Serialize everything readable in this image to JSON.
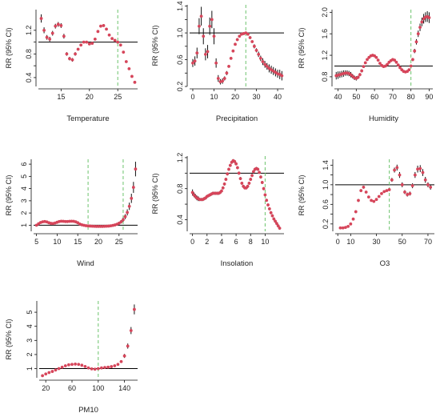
{
  "figure": {
    "ylabel": "RR (95% CI)"
  },
  "colors": {
    "point": "#d6455a",
    "ci": "#111111",
    "refline": "#000000",
    "threshold": "#6cc36c",
    "axis": "#111111"
  },
  "chart_data": [
    {
      "type": "scatter",
      "xlabel": "Temperature",
      "ylabel": "RR (95% CI)",
      "xlim": [
        11,
        28.5
      ],
      "ylim": [
        0.25,
        1.55
      ],
      "xticks": [
        15,
        20,
        25
      ],
      "yticks": [
        0.4,
        0.6,
        0.8,
        1.0,
        1.2
      ],
      "ytick_labels": [
        "0.4",
        "",
        "0.8",
        "",
        "1.2"
      ],
      "ref_y": 1.0,
      "threshold_x": 25,
      "x": [
        11.5,
        12,
        12.5,
        13,
        13.5,
        14,
        14.5,
        15,
        15.5,
        16,
        16.5,
        17,
        17.5,
        18,
        18.5,
        19,
        19.5,
        20,
        20.5,
        21,
        21.5,
        22,
        22.5,
        23,
        23.5,
        24,
        24.5,
        25,
        25.5,
        26,
        26.5,
        27,
        27.5,
        28
      ],
      "y": [
        1.4,
        1.2,
        1.08,
        1.05,
        1.15,
        1.27,
        1.3,
        1.28,
        1.1,
        0.8,
        0.72,
        0.7,
        0.8,
        0.88,
        0.95,
        1.0,
        1.0,
        0.97,
        0.98,
        1.05,
        1.18,
        1.27,
        1.28,
        1.22,
        1.12,
        1.06,
        1.03,
        1.0,
        0.95,
        0.83,
        0.67,
        0.55,
        0.42,
        0.32
      ],
      "ci": [
        0.07,
        0.05,
        0.04,
        0.04,
        0.04,
        0.04,
        0.04,
        0.04,
        0.04,
        0.03,
        0.03,
        0.03,
        0.03,
        0.02,
        0.02,
        0.02,
        0.02,
        0.02,
        0.02,
        0.02,
        0.02,
        0.02,
        0.02,
        0.02,
        0.02,
        0.02,
        0.02,
        0.02,
        0.02,
        0.02,
        0.02,
        0.02,
        0.02,
        0.02
      ]
    },
    {
      "type": "scatter",
      "xlabel": "Precipitation",
      "ylabel": "RR (95% CI)",
      "xlim": [
        -1.5,
        43
      ],
      "ylim": [
        0.2,
        1.42
      ],
      "xticks": [
        0,
        10,
        20,
        30,
        40
      ],
      "yticks": [
        0.2,
        0.4,
        0.6,
        0.8,
        1.0,
        1.2,
        1.4
      ],
      "ytick_labels": [
        "0.2",
        "",
        "0.6",
        "",
        "1.0",
        "",
        "1.4"
      ],
      "ref_y": 1.0,
      "threshold_x": 25,
      "x": [
        0,
        1,
        2,
        3,
        4,
        5,
        6,
        7,
        8,
        9,
        10,
        11,
        12,
        13,
        14,
        15,
        16,
        17,
        18,
        19,
        20,
        21,
        22,
        23,
        24,
        25,
        26,
        27,
        28,
        29,
        30,
        31,
        32,
        33,
        34,
        35,
        36,
        37,
        38,
        39,
        40,
        41,
        42
      ],
      "y": [
        0.55,
        0.58,
        0.7,
        1.1,
        1.25,
        0.95,
        0.68,
        0.72,
        1.1,
        1.2,
        0.95,
        0.55,
        0.32,
        0.27,
        0.28,
        0.32,
        0.4,
        0.5,
        0.62,
        0.73,
        0.83,
        0.9,
        0.95,
        0.98,
        0.99,
        1.0,
        0.98,
        0.93,
        0.87,
        0.8,
        0.74,
        0.68,
        0.62,
        0.57,
        0.53,
        0.5,
        0.47,
        0.45,
        0.43,
        0.41,
        0.39,
        0.38,
        0.36
      ],
      "ci": [
        0.06,
        0.07,
        0.08,
        0.12,
        0.14,
        0.12,
        0.09,
        0.1,
        0.13,
        0.13,
        0.12,
        0.07,
        0.05,
        0.04,
        0.04,
        0.03,
        0.03,
        0.02,
        0.02,
        0.02,
        0.02,
        0.02,
        0.02,
        0.01,
        0.01,
        0.01,
        0.02,
        0.02,
        0.02,
        0.03,
        0.03,
        0.04,
        0.04,
        0.05,
        0.05,
        0.05,
        0.06,
        0.06,
        0.06,
        0.06,
        0.06,
        0.07,
        0.07
      ]
    },
    {
      "type": "scatter",
      "xlabel": "Humidity",
      "ylabel": "RR (95% CI)",
      "xlim": [
        38,
        92
      ],
      "ylim": [
        0.62,
        2.05
      ],
      "xticks": [
        40,
        50,
        60,
        70,
        80,
        90
      ],
      "yticks": [
        0.8,
        1.2,
        1.6,
        2.0
      ],
      "ytick_labels": [
        "0.8",
        "1.2",
        "1.6",
        "2.0"
      ],
      "ref_y": 1.0,
      "threshold_x": 80,
      "x": [
        39,
        40,
        41,
        42,
        43,
        44,
        45,
        46,
        47,
        48,
        49,
        50,
        51,
        52,
        53,
        54,
        55,
        56,
        57,
        58,
        59,
        60,
        61,
        62,
        63,
        64,
        65,
        66,
        67,
        68,
        69,
        70,
        71,
        72,
        73,
        74,
        75,
        76,
        77,
        78,
        79,
        80,
        81,
        82,
        83,
        84,
        85,
        86,
        87,
        88,
        89,
        90
      ],
      "y": [
        0.82,
        0.83,
        0.84,
        0.85,
        0.86,
        0.87,
        0.87,
        0.86,
        0.84,
        0.81,
        0.78,
        0.77,
        0.79,
        0.84,
        0.91,
        0.99,
        1.06,
        1.12,
        1.16,
        1.19,
        1.2,
        1.19,
        1.16,
        1.11,
        1.05,
        1.01,
        0.99,
        1.0,
        1.03,
        1.07,
        1.1,
        1.12,
        1.11,
        1.07,
        1.02,
        0.97,
        0.93,
        0.9,
        0.89,
        0.9,
        0.93,
        1.0,
        1.12,
        1.28,
        1.45,
        1.6,
        1.72,
        1.82,
        1.88,
        1.91,
        1.92,
        1.9
      ],
      "ci": [
        0.07,
        0.07,
        0.06,
        0.06,
        0.06,
        0.05,
        0.05,
        0.05,
        0.05,
        0.04,
        0.04,
        0.04,
        0.03,
        0.03,
        0.03,
        0.02,
        0.02,
        0.02,
        0.02,
        0.02,
        0.02,
        0.02,
        0.02,
        0.02,
        0.02,
        0.02,
        0.02,
        0.02,
        0.02,
        0.02,
        0.02,
        0.02,
        0.02,
        0.02,
        0.02,
        0.02,
        0.02,
        0.02,
        0.02,
        0.02,
        0.02,
        0.02,
        0.03,
        0.04,
        0.05,
        0.06,
        0.07,
        0.08,
        0.09,
        0.09,
        0.1,
        0.1
      ]
    },
    {
      "type": "scatter",
      "xlabel": "Wind",
      "ylabel": "RR (95% CI)",
      "xlim": [
        4.3,
        29.5
      ],
      "ylim": [
        0.5,
        6.4
      ],
      "xticks": [
        5,
        10,
        15,
        20,
        25
      ],
      "yticks": [
        1,
        2,
        3,
        4,
        5,
        6
      ],
      "ytick_labels": [
        "1",
        "2",
        "3",
        "4",
        "5",
        "6"
      ],
      "ref_y": 1.0,
      "threshold_x": [
        17.5,
        26
      ],
      "x": [
        5,
        5.5,
        6,
        6.5,
        7,
        7.5,
        8,
        8.5,
        9,
        9.5,
        10,
        10.5,
        11,
        11.5,
        12,
        12.5,
        13,
        13.5,
        14,
        14.5,
        15,
        15.5,
        16,
        16.5,
        17,
        17.5,
        18,
        18.5,
        19,
        19.5,
        20,
        20.5,
        21,
        21.5,
        22,
        22.5,
        23,
        23.5,
        24,
        24.5,
        25,
        25.5,
        26,
        26.5,
        27,
        27.5,
        28,
        28.5,
        29
      ],
      "y": [
        1.0,
        1.12,
        1.22,
        1.28,
        1.3,
        1.27,
        1.2,
        1.15,
        1.14,
        1.18,
        1.24,
        1.3,
        1.33,
        1.32,
        1.3,
        1.3,
        1.32,
        1.33,
        1.32,
        1.28,
        1.2,
        1.1,
        1.03,
        0.99,
        0.96,
        0.94,
        0.93,
        0.92,
        0.91,
        0.9,
        0.9,
        0.9,
        0.9,
        0.91,
        0.92,
        0.93,
        0.95,
        0.98,
        1.02,
        1.08,
        1.16,
        1.28,
        1.45,
        1.7,
        2.05,
        2.55,
        3.2,
        4.1,
        5.6
      ],
      "ci": [
        0.06,
        0.05,
        0.05,
        0.05,
        0.05,
        0.05,
        0.05,
        0.05,
        0.05,
        0.05,
        0.05,
        0.05,
        0.05,
        0.05,
        0.05,
        0.05,
        0.05,
        0.05,
        0.05,
        0.05,
        0.05,
        0.05,
        0.05,
        0.05,
        0.05,
        0.05,
        0.05,
        0.05,
        0.05,
        0.05,
        0.05,
        0.05,
        0.05,
        0.05,
        0.06,
        0.06,
        0.07,
        0.08,
        0.09,
        0.1,
        0.12,
        0.14,
        0.17,
        0.2,
        0.25,
        0.3,
        0.38,
        0.45,
        0.6
      ]
    },
    {
      "type": "scatter",
      "xlabel": "Insolation",
      "ylabel": "RR (95% CI)",
      "xlim": [
        -0.4,
        12.6
      ],
      "ylim": [
        0.25,
        1.22
      ],
      "xticks": [
        0,
        2,
        4,
        6,
        8,
        10
      ],
      "yticks": [
        0.4,
        0.6,
        0.8,
        1.0,
        1.2
      ],
      "ytick_labels": [
        "0.4",
        "",
        "0.8",
        "",
        "1.2"
      ],
      "ref_y": 1.0,
      "threshold_x": 10,
      "x": [
        0,
        0.2,
        0.4,
        0.6,
        0.8,
        1,
        1.2,
        1.4,
        1.6,
        1.8,
        2,
        2.2,
        2.4,
        2.6,
        2.8,
        3,
        3.2,
        3.4,
        3.6,
        3.8,
        4,
        4.2,
        4.4,
        4.6,
        4.8,
        5,
        5.2,
        5.4,
        5.6,
        5.8,
        6,
        6.2,
        6.4,
        6.6,
        6.8,
        7,
        7.2,
        7.4,
        7.6,
        7.8,
        8,
        8.2,
        8.4,
        8.6,
        8.8,
        9,
        9.2,
        9.4,
        9.6,
        9.8,
        10,
        10.2,
        10.4,
        10.6,
        10.8,
        11,
        11.2,
        11.4,
        11.6,
        11.8,
        12
      ],
      "y": [
        0.75,
        0.72,
        0.7,
        0.68,
        0.67,
        0.66,
        0.66,
        0.66,
        0.67,
        0.68,
        0.7,
        0.71,
        0.72,
        0.73,
        0.74,
        0.74,
        0.74,
        0.74,
        0.74,
        0.75,
        0.77,
        0.81,
        0.86,
        0.92,
        0.99,
        1.05,
        1.1,
        1.14,
        1.16,
        1.15,
        1.12,
        1.07,
        1.0,
        0.93,
        0.87,
        0.83,
        0.81,
        0.81,
        0.83,
        0.87,
        0.92,
        0.97,
        1.02,
        1.05,
        1.06,
        1.05,
        1.01,
        0.95,
        0.88,
        0.8,
        0.72,
        0.65,
        0.59,
        0.54,
        0.49,
        0.45,
        0.41,
        0.38,
        0.35,
        0.32,
        0.29
      ],
      "ci": [
        0.04,
        0.03,
        0.03,
        0.03,
        0.03,
        0.02,
        0.02,
        0.02,
        0.02,
        0.02,
        0.02,
        0.02,
        0.02,
        0.02,
        0.02,
        0.02,
        0.02,
        0.02,
        0.02,
        0.02,
        0.02,
        0.02,
        0.02,
        0.02,
        0.02,
        0.02,
        0.02,
        0.02,
        0.02,
        0.02,
        0.02,
        0.02,
        0.02,
        0.02,
        0.02,
        0.02,
        0.02,
        0.02,
        0.02,
        0.02,
        0.02,
        0.02,
        0.02,
        0.02,
        0.02,
        0.02,
        0.02,
        0.02,
        0.02,
        0.02,
        0.02,
        0.02,
        0.02,
        0.02,
        0.02,
        0.02,
        0.02,
        0.02,
        0.02,
        0.02,
        0.02
      ]
    },
    {
      "type": "scatter",
      "xlabel": "O3",
      "ylabel": "RR (95% CI)",
      "xlim": [
        -2,
        75
      ],
      "ylim": [
        0.05,
        1.52
      ],
      "xticks": [
        0,
        10,
        30,
        50,
        70
      ],
      "yticks": [
        0.2,
        0.4,
        0.6,
        0.8,
        1.0,
        1.2,
        1.4
      ],
      "ytick_labels": [
        "0.2",
        "",
        "0.6",
        "",
        "1.0",
        "",
        "1.4"
      ],
      "ref_y": 1.0,
      "threshold_x": 40,
      "x": [
        2,
        4,
        6,
        8,
        10,
        12,
        14,
        16,
        18,
        20,
        22,
        24,
        26,
        28,
        30,
        32,
        34,
        36,
        38,
        40,
        42,
        44,
        46,
        48,
        50,
        52,
        54,
        56,
        58,
        60,
        62,
        64,
        66,
        68,
        70,
        72
      ],
      "y": [
        0.12,
        0.12,
        0.13,
        0.15,
        0.2,
        0.3,
        0.45,
        0.68,
        0.88,
        0.95,
        0.85,
        0.75,
        0.68,
        0.66,
        0.7,
        0.76,
        0.82,
        0.86,
        0.88,
        0.9,
        1.1,
        1.3,
        1.35,
        1.2,
        1.0,
        0.85,
        0.8,
        0.82,
        0.98,
        1.2,
        1.32,
        1.33,
        1.25,
        1.1,
        1.0,
        0.95
      ],
      "ci": [
        0.02,
        0.02,
        0.02,
        0.02,
        0.02,
        0.02,
        0.03,
        0.03,
        0.03,
        0.03,
        0.02,
        0.02,
        0.02,
        0.02,
        0.02,
        0.02,
        0.02,
        0.02,
        0.02,
        0.02,
        0.04,
        0.05,
        0.06,
        0.06,
        0.05,
        0.04,
        0.04,
        0.04,
        0.05,
        0.06,
        0.07,
        0.07,
        0.07,
        0.06,
        0.05,
        0.05
      ]
    },
    {
      "type": "scatter",
      "xlabel": "PM10",
      "ylabel": "RR (95% CI)",
      "xlim": [
        10,
        160
      ],
      "ylim": [
        0.35,
        5.8
      ],
      "xticks": [
        20,
        60,
        100,
        140
      ],
      "yticks": [
        1,
        2,
        3,
        4,
        5
      ],
      "ytick_labels": [
        "1",
        "2",
        "3",
        "4",
        "5"
      ],
      "ref_y": 1.0,
      "threshold_x": 100,
      "x": [
        15,
        20,
        25,
        30,
        35,
        40,
        45,
        50,
        55,
        60,
        65,
        70,
        75,
        80,
        85,
        90,
        95,
        100,
        105,
        110,
        115,
        120,
        125,
        130,
        135,
        140,
        145,
        150,
        155
      ],
      "y": [
        0.5,
        0.62,
        0.72,
        0.8,
        0.9,
        1.0,
        1.1,
        1.2,
        1.27,
        1.3,
        1.32,
        1.3,
        1.24,
        1.15,
        1.05,
        0.98,
        0.96,
        1.0,
        1.05,
        1.08,
        1.1,
        1.14,
        1.2,
        1.3,
        1.5,
        1.9,
        2.6,
        3.7,
        5.2
      ],
      "ci": [
        0.05,
        0.05,
        0.05,
        0.04,
        0.04,
        0.04,
        0.04,
        0.04,
        0.04,
        0.04,
        0.04,
        0.04,
        0.04,
        0.04,
        0.04,
        0.04,
        0.04,
        0.04,
        0.04,
        0.04,
        0.05,
        0.05,
        0.06,
        0.08,
        0.1,
        0.14,
        0.18,
        0.25,
        0.35
      ]
    }
  ]
}
